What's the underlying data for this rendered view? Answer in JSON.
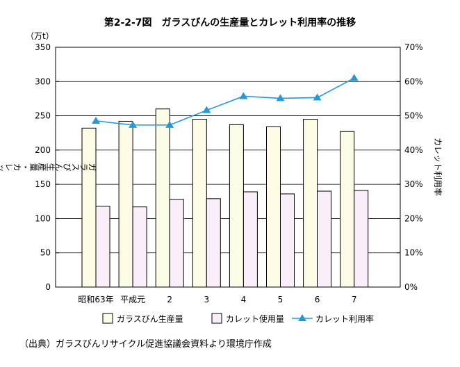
{
  "title": "第2-2-7図　ガラスびんの生産量とカレット利用率の推移",
  "source": "（出典）ガラスびんリサイクル促進協議会資料より環境庁作成",
  "chart_data": {
    "type": "bar",
    "categories": [
      "昭和63年",
      "平成元",
      "2",
      "3",
      "4",
      "5",
      "6",
      "7"
    ],
    "series": [
      {
        "name": "ガラスびん生産量",
        "type": "bar",
        "axis": "left",
        "values": [
          232,
          242,
          260,
          245,
          237,
          234,
          245,
          227
        ],
        "color": "#fbfbe6"
      },
      {
        "name": "カレット使用量",
        "type": "bar",
        "axis": "left",
        "values": [
          118,
          117,
          128,
          129,
          139,
          136,
          140,
          141
        ],
        "color": "#fbeefb"
      },
      {
        "name": "カレット利用率",
        "type": "line",
        "axis": "right",
        "values": [
          48.5,
          47.3,
          47.3,
          51.6,
          55.7,
          55.1,
          55.3,
          61.0
        ],
        "color": "#1e9be0"
      }
    ],
    "y_left": {
      "unit": "（万t）",
      "label": "ガラスびん生産量・カレット使用量",
      "min": 0,
      "max": 350,
      "ticks": [
        "0",
        "50",
        "100",
        "150",
        "200",
        "250",
        "300",
        "350"
      ]
    },
    "y_right": {
      "label": "カレット利用率",
      "min": 0,
      "max": 70,
      "ticks": [
        "0%",
        "10%",
        "20%",
        "30%",
        "40%",
        "50%",
        "60%",
        "70%"
      ]
    },
    "grid": "horizontal",
    "legend_position": "bottom"
  }
}
